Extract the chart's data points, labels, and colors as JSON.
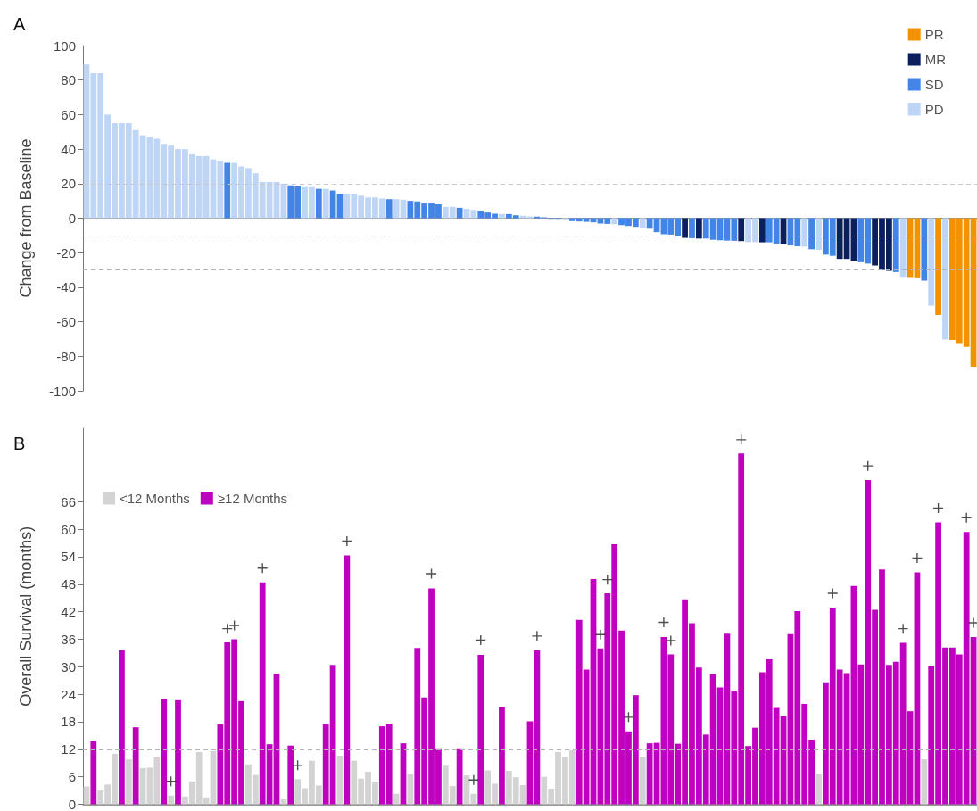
{
  "chart_data": [
    {
      "type": "bar",
      "title": "A",
      "ylabel": "Change from Baseline",
      "stacked": true,
      "tick_labels": "y",
      "legend": "top right",
      "ylim": [
        -100,
        100
      ],
      "yticks": [
        -100,
        -80,
        -60,
        -40,
        -20,
        0,
        20,
        40,
        60,
        80,
        100
      ],
      "ref_lines": [
        {
          "axis": "y",
          "value": 20,
          "color": "#c8c8c8",
          "line_style": "dashed"
        },
        {
          "axis": "y",
          "value": -10,
          "color": "#b4b4b4",
          "line_style": "dashed"
        },
        {
          "axis": "y",
          "value": -30,
          "color": "#b4b4b4",
          "line_style": "dashed"
        }
      ],
      "categories": [
        null,
        null,
        null,
        null,
        null,
        null,
        null,
        null,
        null,
        null,
        null,
        null,
        null,
        null,
        null,
        null,
        null,
        null,
        null,
        null,
        null,
        null,
        null,
        null,
        null,
        null,
        null,
        null,
        null,
        null,
        null,
        null,
        null,
        null,
        null,
        null,
        null,
        null,
        null,
        null,
        null,
        null,
        null,
        null,
        null,
        null,
        null,
        null,
        null,
        null,
        null,
        null,
        null,
        null,
        null,
        null,
        null,
        null,
        null,
        null,
        null,
        null,
        null,
        null,
        null,
        null,
        null,
        null,
        null,
        null,
        null,
        null,
        null,
        null,
        null,
        null,
        null,
        null,
        null,
        null,
        null,
        null,
        null,
        null,
        null,
        null,
        null,
        null,
        null,
        null,
        null,
        null,
        null,
        null,
        null,
        null,
        null,
        null,
        null,
        null,
        null,
        null,
        null,
        null,
        null,
        null,
        null,
        null,
        null,
        null,
        null,
        null,
        null,
        null,
        null,
        null,
        null,
        null,
        null,
        null,
        null,
        null,
        null,
        null,
        null,
        null,
        null
      ],
      "series": [
        {
          "name": "PR",
          "color": "#f39200",
          "values": [
            null,
            null,
            null,
            null,
            null,
            null,
            null,
            null,
            null,
            null,
            null,
            null,
            null,
            null,
            null,
            null,
            null,
            null,
            null,
            null,
            null,
            null,
            null,
            null,
            null,
            null,
            null,
            null,
            null,
            null,
            null,
            null,
            null,
            null,
            null,
            null,
            null,
            null,
            null,
            null,
            null,
            null,
            null,
            null,
            null,
            null,
            null,
            null,
            null,
            null,
            null,
            null,
            null,
            null,
            null,
            null,
            null,
            null,
            null,
            null,
            null,
            null,
            null,
            null,
            null,
            null,
            null,
            null,
            null,
            null,
            null,
            null,
            null,
            null,
            null,
            null,
            null,
            null,
            null,
            null,
            null,
            null,
            null,
            null,
            null,
            null,
            null,
            null,
            null,
            null,
            null,
            null,
            null,
            null,
            null,
            null,
            null,
            null,
            null,
            null,
            null,
            null,
            null,
            null,
            null,
            null,
            null,
            null,
            null,
            null,
            null,
            null,
            null,
            null,
            null,
            null,
            null,
            -34.6,
            -34.8,
            null,
            null,
            -56.1,
            null,
            -70.5,
            -72.9,
            -74.5,
            -86
          ]
        },
        {
          "name": "MR",
          "color": "#0b1f5c",
          "values": [
            null,
            null,
            null,
            null,
            null,
            null,
            null,
            null,
            null,
            null,
            null,
            null,
            null,
            null,
            null,
            null,
            null,
            null,
            null,
            null,
            null,
            null,
            null,
            null,
            null,
            null,
            null,
            null,
            null,
            null,
            null,
            null,
            null,
            null,
            null,
            null,
            null,
            null,
            null,
            null,
            null,
            null,
            null,
            null,
            null,
            null,
            null,
            null,
            null,
            null,
            null,
            null,
            null,
            null,
            null,
            null,
            null,
            null,
            null,
            null,
            null,
            null,
            null,
            null,
            null,
            null,
            null,
            null,
            null,
            null,
            null,
            null,
            null,
            null,
            null,
            null,
            null,
            null,
            null,
            null,
            null,
            null,
            null,
            null,
            null,
            -11.4,
            null,
            -11.8,
            null,
            null,
            null,
            null,
            null,
            -13.3,
            null,
            null,
            -14,
            null,
            null,
            -15.2,
            null,
            null,
            null,
            null,
            null,
            null,
            null,
            -23.6,
            -23.6,
            -24.8,
            null,
            null,
            -27.4,
            -30,
            -30.5,
            null,
            null,
            null,
            null,
            null,
            null,
            null,
            null,
            null,
            null,
            null,
            null
          ]
        },
        {
          "name": "SD",
          "color": "#4285e6",
          "values": [
            null,
            null,
            null,
            null,
            null,
            null,
            null,
            null,
            null,
            null,
            null,
            null,
            null,
            null,
            null,
            null,
            null,
            null,
            null,
            null,
            32,
            null,
            null,
            null,
            null,
            null,
            null,
            null,
            null,
            19,
            18.5,
            null,
            null,
            17,
            null,
            16,
            14,
            null,
            null,
            null,
            null,
            null,
            null,
            11,
            null,
            null,
            10,
            9.7,
            8.5,
            8.5,
            8,
            null,
            null,
            6,
            null,
            null,
            4.3,
            3.3,
            2.6,
            null,
            2.4,
            1.7,
            null,
            null,
            0.9,
            0.5,
            -0.9,
            -0.9,
            null,
            -1.7,
            -1.9,
            -2.1,
            -2.4,
            -3.1,
            -3.3,
            null,
            -4,
            -4.5,
            -5,
            null,
            -6.1,
            -8.1,
            -9.3,
            -9.5,
            -10.6,
            null,
            -11.6,
            null,
            -11.8,
            -12.5,
            -12.8,
            -13,
            -13.1,
            null,
            null,
            null,
            null,
            -14,
            -14.7,
            null,
            -15.8,
            -16.3,
            null,
            -18,
            null,
            -21.1,
            -21.8,
            null,
            null,
            null,
            -25.5,
            -26.3,
            null,
            null,
            null,
            -31.2,
            null,
            null,
            null,
            -36.2,
            null,
            null,
            null,
            null,
            null,
            null,
            null
          ]
        },
        {
          "name": "PD",
          "color": "#bfd5f5",
          "values": [
            89,
            84,
            84,
            60,
            55,
            55,
            55,
            51,
            48,
            47,
            46,
            43,
            42,
            40,
            40,
            37,
            36,
            36,
            34,
            33,
            null,
            32,
            30,
            29,
            26,
            21,
            21,
            21,
            20,
            null,
            null,
            18,
            18,
            null,
            17,
            null,
            null,
            14,
            14,
            13,
            12,
            12,
            11.4,
            null,
            11,
            10.7,
            null,
            null,
            null,
            null,
            null,
            6.6,
            6.6,
            null,
            5.4,
            4.8,
            null,
            null,
            null,
            2.4,
            null,
            null,
            1.4,
            1,
            null,
            null,
            null,
            null,
            -1.2,
            null,
            null,
            null,
            null,
            null,
            null,
            -3.5,
            null,
            null,
            null,
            -5.9,
            null,
            null,
            null,
            null,
            null,
            null,
            null,
            null,
            null,
            null,
            null,
            null,
            null,
            null,
            -13.9,
            -13.9,
            null,
            null,
            null,
            null,
            null,
            null,
            -16.5,
            null,
            -18.4,
            null,
            null,
            null,
            null,
            null,
            null,
            null,
            null,
            null,
            null,
            null,
            -34.5,
            null,
            null,
            null,
            -50.7,
            null,
            -70.3,
            null,
            null,
            null,
            null
          ]
        }
      ]
    },
    {
      "type": "bar",
      "title": "B",
      "ylabel": "Overall Survival (months)",
      "stacked": true,
      "tick_labels": "y",
      "legend": "top left",
      "ylim": [
        0,
        82
      ],
      "yticks": [
        0,
        6,
        12,
        18,
        24,
        30,
        36,
        42,
        48,
        54,
        60,
        66
      ],
      "ref_lines": [
        {
          "axis": "y",
          "value": 12,
          "color": "#b4b4b4",
          "line_style": "dashed"
        }
      ],
      "categories": [
        null,
        null,
        null,
        null,
        null,
        null,
        null,
        null,
        null,
        null,
        null,
        null,
        null,
        null,
        null,
        null,
        null,
        null,
        null,
        null,
        null,
        null,
        null,
        null,
        null,
        null,
        null,
        null,
        null,
        null,
        null,
        null,
        null,
        null,
        null,
        null,
        null,
        null,
        null,
        null,
        null,
        null,
        null,
        null,
        null,
        null,
        null,
        null,
        null,
        null,
        null,
        null,
        null,
        null,
        null,
        null,
        null,
        null,
        null,
        null,
        null,
        null,
        null,
        null,
        null,
        null,
        null,
        null,
        null,
        null,
        null,
        null,
        null,
        null,
        null,
        null,
        null,
        null,
        null,
        null,
        null,
        null,
        null,
        null,
        null,
        null,
        null,
        null,
        null,
        null,
        null,
        null,
        null,
        null,
        null,
        null,
        null,
        null,
        null,
        null,
        null,
        null,
        null,
        null,
        null,
        null,
        null,
        null,
        null,
        null,
        null,
        null,
        null,
        null,
        null,
        null,
        null,
        null,
        null,
        null,
        null,
        null,
        null,
        null,
        null,
        null,
        null
      ],
      "series": [
        {
          "name": "<12 Months",
          "color": "#d3d3d3",
          "values": [
            3.9,
            null,
            3,
            4.3,
            11,
            null,
            9.8,
            null,
            7.9,
            8,
            10.3,
            null,
            1.9,
            null,
            1.7,
            5,
            11.4,
            1.5,
            11.6,
            null,
            null,
            null,
            null,
            8.7,
            6.4,
            null,
            null,
            null,
            1.2,
            null,
            5.5,
            3.5,
            9.5,
            4.1,
            null,
            null,
            10.6,
            null,
            9.5,
            5.6,
            7.1,
            4.8,
            null,
            null,
            2.3,
            null,
            6.6,
            null,
            null,
            null,
            null,
            8.4,
            4,
            null,
            6.3,
            2.3,
            null,
            7.4,
            4.5,
            null,
            7.3,
            5.9,
            4.2,
            null,
            null,
            6,
            3.4,
            11.4,
            10.4,
            11.8,
            null,
            null,
            null,
            null,
            null,
            null,
            null,
            null,
            null,
            10.4,
            null,
            null,
            null,
            null,
            null,
            null,
            null,
            null,
            null,
            null,
            null,
            null,
            null,
            null,
            null,
            null,
            null,
            null,
            null,
            null,
            null,
            null,
            null,
            null,
            6.7,
            null,
            null,
            null,
            null,
            null,
            null,
            null,
            null,
            null,
            null,
            null,
            null,
            null,
            null,
            9.8,
            null,
            null,
            null,
            null,
            null,
            null,
            null
          ]
        },
        {
          "name": "≥12 Months",
          "color": "#c000c0",
          "values": [
            null,
            13.8,
            null,
            null,
            null,
            33.7,
            null,
            16.8,
            null,
            null,
            null,
            22.9,
            null,
            22.7,
            null,
            null,
            null,
            null,
            null,
            17.4,
            35.3,
            36,
            22.5,
            null,
            null,
            48.4,
            13.1,
            28.5,
            null,
            12.8,
            null,
            null,
            null,
            null,
            17.4,
            30.4,
            null,
            54.3,
            null,
            null,
            null,
            null,
            17,
            17.6,
            null,
            13.3,
            null,
            34.1,
            23.3,
            47.1,
            12.2,
            null,
            null,
            12.2,
            null,
            null,
            32.6,
            null,
            null,
            21.3,
            null,
            null,
            null,
            18.1,
            33.6,
            null,
            null,
            null,
            null,
            null,
            40.2,
            29.4,
            49.1,
            34,
            46,
            56.7,
            37.9,
            15.9,
            23.8,
            null,
            13.3,
            13.4,
            36.5,
            32.7,
            13.2,
            44.7,
            39.5,
            29.8,
            15.2,
            28.4,
            25.5,
            37.2,
            24.6,
            76.5,
            12.7,
            16.7,
            28.8,
            31.6,
            21.2,
            19.2,
            37.1,
            42.1,
            21.9,
            14.1,
            null,
            26.6,
            42.9,
            29.4,
            28.6,
            47.6,
            30.5,
            70.7,
            42.4,
            51.2,
            30.4,
            31.1,
            35.2,
            20.3,
            50.6,
            null,
            30.1,
            61.5,
            34.2,
            34.2,
            32.7,
            59.4,
            36.5
          ]
        },
        {
          "type": "scatter",
          "marker": "cross",
          "color": "#222222",
          "values": [
            null,
            null,
            null,
            null,
            null,
            null,
            null,
            null,
            null,
            null,
            null,
            null,
            5,
            null,
            null,
            null,
            null,
            null,
            null,
            null,
            38.3,
            39,
            null,
            null,
            null,
            51.5,
            null,
            null,
            null,
            null,
            8.5,
            null,
            null,
            null,
            null,
            null,
            null,
            57.4,
            null,
            null,
            null,
            null,
            null,
            null,
            null,
            null,
            null,
            null,
            null,
            50.3,
            null,
            null,
            null,
            null,
            null,
            5.3,
            35.8,
            null,
            null,
            null,
            null,
            null,
            null,
            null,
            36.7,
            null,
            null,
            null,
            null,
            null,
            null,
            null,
            null,
            37,
            49,
            null,
            null,
            19,
            null,
            null,
            null,
            null,
            39.7,
            35.7,
            null,
            null,
            null,
            null,
            null,
            null,
            null,
            null,
            null,
            79.5,
            null,
            null,
            null,
            null,
            null,
            null,
            null,
            null,
            null,
            null,
            null,
            null,
            46,
            null,
            null,
            null,
            null,
            73.8,
            null,
            null,
            null,
            null,
            38.3,
            null,
            53.7,
            null,
            null,
            64.6,
            null,
            null,
            null,
            62.5,
            39.6
          ]
        }
      ]
    }
  ]
}
